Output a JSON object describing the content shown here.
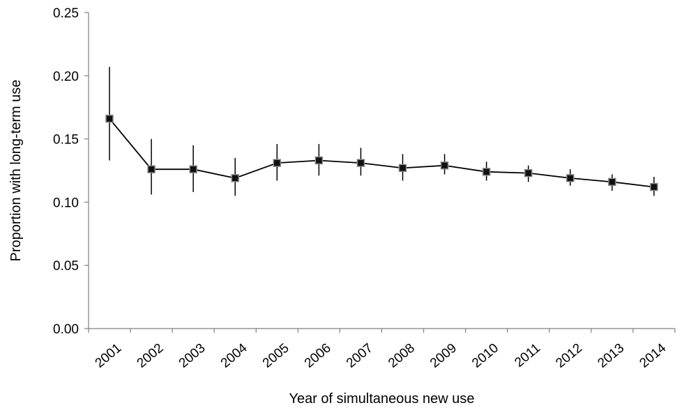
{
  "chart_data": {
    "type": "line",
    "title": "",
    "xlabel": "Year of simultaneous new use",
    "ylabel": "Proportion with long-term use",
    "categories": [
      "2001",
      "2002",
      "2003",
      "2004",
      "2005",
      "2006",
      "2007",
      "2008",
      "2009",
      "2010",
      "2011",
      "2012",
      "2013",
      "2014"
    ],
    "series": [
      {
        "values": [
          0.166,
          0.126,
          0.126,
          0.119,
          0.131,
          0.133,
          0.131,
          0.127,
          0.129,
          0.124,
          0.123,
          0.119,
          0.116,
          0.112
        ],
        "error_lower": [
          0.133,
          0.106,
          0.108,
          0.105,
          0.117,
          0.121,
          0.121,
          0.117,
          0.122,
          0.117,
          0.116,
          0.113,
          0.109,
          0.105
        ],
        "error_upper": [
          0.207,
          0.15,
          0.145,
          0.135,
          0.146,
          0.146,
          0.143,
          0.138,
          0.138,
          0.132,
          0.129,
          0.126,
          0.122,
          0.12
        ]
      }
    ],
    "yticks": [
      "0.00",
      "0.05",
      "0.10",
      "0.15",
      "0.20",
      "0.25"
    ],
    "ylim": [
      0,
      0.25
    ],
    "grid": false,
    "legend": "none",
    "colors": {
      "line": "#000000",
      "marker": "#111111",
      "marker_edge": "#888888",
      "axis": "#7f7f7f"
    }
  }
}
